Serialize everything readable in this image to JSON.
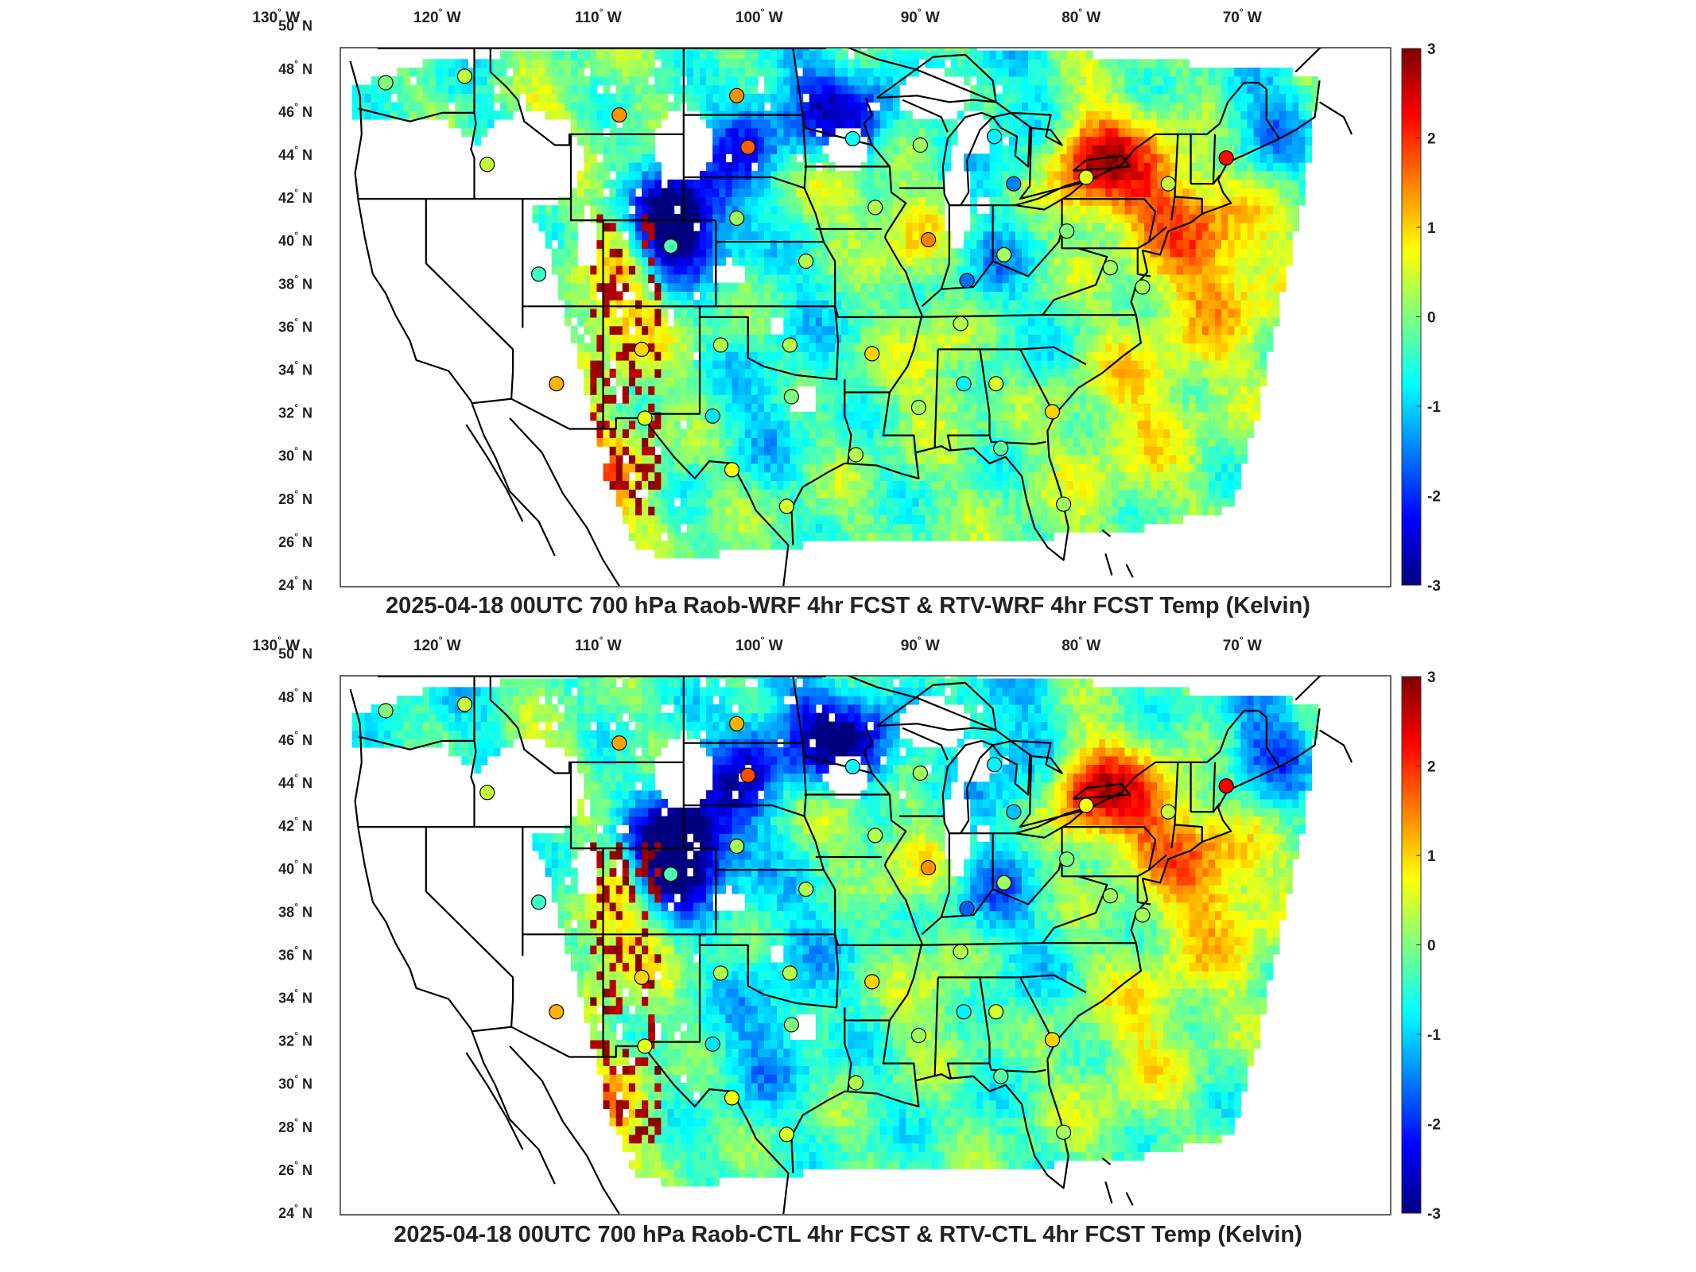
{
  "colors": {
    "scale": [
      "#00007f",
      "#0000ff",
      "#007fff",
      "#00ffff",
      "#7fff7f",
      "#ffff00",
      "#ff7f00",
      "#ff0000",
      "#7f0000"
    ]
  },
  "axes": {
    "lon_labels": [
      {
        "deg": "130",
        "hemi": "W"
      },
      {
        "deg": "120",
        "hemi": "W"
      },
      {
        "deg": "110",
        "hemi": "W"
      },
      {
        "deg": "100",
        "hemi": "W"
      },
      {
        "deg": "90",
        "hemi": "W"
      },
      {
        "deg": "80",
        "hemi": "W"
      },
      {
        "deg": "70",
        "hemi": "W"
      }
    ],
    "lat_labels": [
      {
        "deg": "50",
        "hemi": "N"
      },
      {
        "deg": "48",
        "hemi": "N"
      },
      {
        "deg": "46",
        "hemi": "N"
      },
      {
        "deg": "44",
        "hemi": "N"
      },
      {
        "deg": "42",
        "hemi": "N"
      },
      {
        "deg": "40",
        "hemi": "N"
      },
      {
        "deg": "38",
        "hemi": "N"
      },
      {
        "deg": "36",
        "hemi": "N"
      },
      {
        "deg": "34",
        "hemi": "N"
      },
      {
        "deg": "32",
        "hemi": "N"
      },
      {
        "deg": "30",
        "hemi": "N"
      },
      {
        "deg": "28",
        "hemi": "N"
      },
      {
        "deg": "26",
        "hemi": "N"
      },
      {
        "deg": "24",
        "hemi": "N"
      }
    ],
    "degree_symbol": "°"
  },
  "colorbar": {
    "ticks": [
      "3",
      "2",
      "1",
      "0",
      "-1",
      "-2",
      "-3"
    ],
    "range": [
      -3,
      3
    ]
  },
  "panels": [
    {
      "title": "2025-04-18 00UTC 700 hPa Raob-WRF 4hr FCST & RTV-WRF 4hr FCST Temp (Kelvin)",
      "stations": [
        {
          "lon": -122.5,
          "lat": 47.4,
          "v": 0.0
        },
        {
          "lon": -117.6,
          "lat": 47.7,
          "v": 0.4
        },
        {
          "lon": -108.0,
          "lat": 45.9,
          "v": 1.4
        },
        {
          "lon": -100.7,
          "lat": 46.8,
          "v": 1.4
        },
        {
          "lon": -100.0,
          "lat": 44.4,
          "v": 1.7
        },
        {
          "lon": -93.5,
          "lat": 44.8,
          "v": -0.7
        },
        {
          "lon": -89.3,
          "lat": 44.5,
          "v": 0.2
        },
        {
          "lon": -84.7,
          "lat": 44.9,
          "v": -0.8
        },
        {
          "lon": -83.5,
          "lat": 42.7,
          "v": -1.5
        },
        {
          "lon": -79.0,
          "lat": 43.0,
          "v": 0.6
        },
        {
          "lon": -73.9,
          "lat": 42.7,
          "v": 0.4
        },
        {
          "lon": -70.3,
          "lat": 43.9,
          "v": 2.2
        },
        {
          "lon": -116.2,
          "lat": 43.6,
          "v": 0.4
        },
        {
          "lon": -113.0,
          "lat": 38.5,
          "v": -0.4
        },
        {
          "lon": -104.8,
          "lat": 39.8,
          "v": -0.3
        },
        {
          "lon": -100.7,
          "lat": 41.1,
          "v": 0.2
        },
        {
          "lon": -96.4,
          "lat": 39.1,
          "v": 0.3
        },
        {
          "lon": -92.1,
          "lat": 41.6,
          "v": 0.3
        },
        {
          "lon": -88.8,
          "lat": 40.1,
          "v": 1.5
        },
        {
          "lon": -86.4,
          "lat": 38.2,
          "v": -1.6
        },
        {
          "lon": -84.1,
          "lat": 39.4,
          "v": 0.2
        },
        {
          "lon": -80.2,
          "lat": 40.5,
          "v": 0.0
        },
        {
          "lon": -77.5,
          "lat": 38.8,
          "v": 0.2
        },
        {
          "lon": -75.5,
          "lat": 37.9,
          "v": 0.2
        },
        {
          "lon": -111.9,
          "lat": 33.4,
          "v": 1.2
        },
        {
          "lon": -106.6,
          "lat": 35.0,
          "v": 1.0
        },
        {
          "lon": -101.7,
          "lat": 35.2,
          "v": 0.3
        },
        {
          "lon": -97.4,
          "lat": 35.2,
          "v": 0.3
        },
        {
          "lon": -92.3,
          "lat": 34.8,
          "v": 1.0
        },
        {
          "lon": -86.8,
          "lat": 36.2,
          "v": 0.3
        },
        {
          "lon": -84.6,
          "lat": 33.4,
          "v": 0.5
        },
        {
          "lon": -81.1,
          "lat": 32.1,
          "v": 1.0
        },
        {
          "lon": -89.4,
          "lat": 32.3,
          "v": 0.2
        },
        {
          "lon": -86.6,
          "lat": 33.4,
          "v": -0.8
        },
        {
          "lon": -97.3,
          "lat": 32.8,
          "v": 0.0
        },
        {
          "lon": -102.2,
          "lat": 31.9,
          "v": -0.9
        },
        {
          "lon": -106.4,
          "lat": 31.8,
          "v": 0.6
        },
        {
          "lon": -93.3,
          "lat": 30.1,
          "v": 0.3
        },
        {
          "lon": -97.6,
          "lat": 27.7,
          "v": 0.5
        },
        {
          "lon": -101.0,
          "lat": 29.4,
          "v": 0.7
        },
        {
          "lon": -80.4,
          "lat": 27.8,
          "v": 0.2
        },
        {
          "lon": -84.3,
          "lat": 30.4,
          "v": -0.2
        }
      ]
    },
    {
      "title": "2025-04-18 00UTC 700 hPa Raob-CTL 4hr FCST & RTV-CTL 4hr FCST Temp (Kelvin)",
      "stations": [
        {
          "lon": -122.5,
          "lat": 47.4,
          "v": 0.0
        },
        {
          "lon": -117.6,
          "lat": 47.7,
          "v": 0.4
        },
        {
          "lon": -108.0,
          "lat": 45.9,
          "v": 1.3
        },
        {
          "lon": -100.7,
          "lat": 46.8,
          "v": 1.2
        },
        {
          "lon": -100.0,
          "lat": 44.4,
          "v": 1.8
        },
        {
          "lon": -93.5,
          "lat": 44.8,
          "v": -0.7
        },
        {
          "lon": -89.3,
          "lat": 44.5,
          "v": 0.2
        },
        {
          "lon": -84.7,
          "lat": 44.9,
          "v": -0.8
        },
        {
          "lon": -83.5,
          "lat": 42.7,
          "v": -1.1
        },
        {
          "lon": -79.0,
          "lat": 43.0,
          "v": 0.7
        },
        {
          "lon": -73.9,
          "lat": 42.7,
          "v": 0.4
        },
        {
          "lon": -70.3,
          "lat": 43.9,
          "v": 2.3
        },
        {
          "lon": -116.2,
          "lat": 43.6,
          "v": 0.4
        },
        {
          "lon": -113.0,
          "lat": 38.5,
          "v": -0.4
        },
        {
          "lon": -104.8,
          "lat": 39.8,
          "v": -0.3
        },
        {
          "lon": -100.7,
          "lat": 41.1,
          "v": 0.2
        },
        {
          "lon": -96.4,
          "lat": 39.1,
          "v": 0.3
        },
        {
          "lon": -92.1,
          "lat": 41.6,
          "v": 0.3
        },
        {
          "lon": -88.8,
          "lat": 40.1,
          "v": 1.4
        },
        {
          "lon": -86.4,
          "lat": 38.2,
          "v": -1.7
        },
        {
          "lon": -84.1,
          "lat": 39.4,
          "v": 0.2
        },
        {
          "lon": -80.2,
          "lat": 40.5,
          "v": 0.0
        },
        {
          "lon": -77.5,
          "lat": 38.8,
          "v": 0.2
        },
        {
          "lon": -75.5,
          "lat": 37.9,
          "v": 0.2
        },
        {
          "lon": -111.9,
          "lat": 33.4,
          "v": 1.2
        },
        {
          "lon": -106.6,
          "lat": 35.0,
          "v": 1.0
        },
        {
          "lon": -101.7,
          "lat": 35.2,
          "v": 0.3
        },
        {
          "lon": -97.4,
          "lat": 35.2,
          "v": 0.3
        },
        {
          "lon": -92.3,
          "lat": 34.8,
          "v": 1.0
        },
        {
          "lon": -86.8,
          "lat": 36.2,
          "v": 0.3
        },
        {
          "lon": -84.6,
          "lat": 33.4,
          "v": 0.5
        },
        {
          "lon": -81.1,
          "lat": 32.1,
          "v": 1.0
        },
        {
          "lon": -89.4,
          "lat": 32.3,
          "v": 0.2
        },
        {
          "lon": -86.6,
          "lat": 33.4,
          "v": -0.8
        },
        {
          "lon": -97.3,
          "lat": 32.8,
          "v": 0.0
        },
        {
          "lon": -102.2,
          "lat": 31.9,
          "v": -0.9
        },
        {
          "lon": -106.4,
          "lat": 31.8,
          "v": 0.6
        },
        {
          "lon": -93.3,
          "lat": 30.1,
          "v": 0.3
        },
        {
          "lon": -97.6,
          "lat": 27.7,
          "v": 0.5
        },
        {
          "lon": -101.0,
          "lat": 29.4,
          "v": 0.7
        },
        {
          "lon": -80.4,
          "lat": 27.8,
          "v": 0.2
        },
        {
          "lon": -84.3,
          "lat": 30.4,
          "v": -0.2
        }
      ]
    }
  ]
}
